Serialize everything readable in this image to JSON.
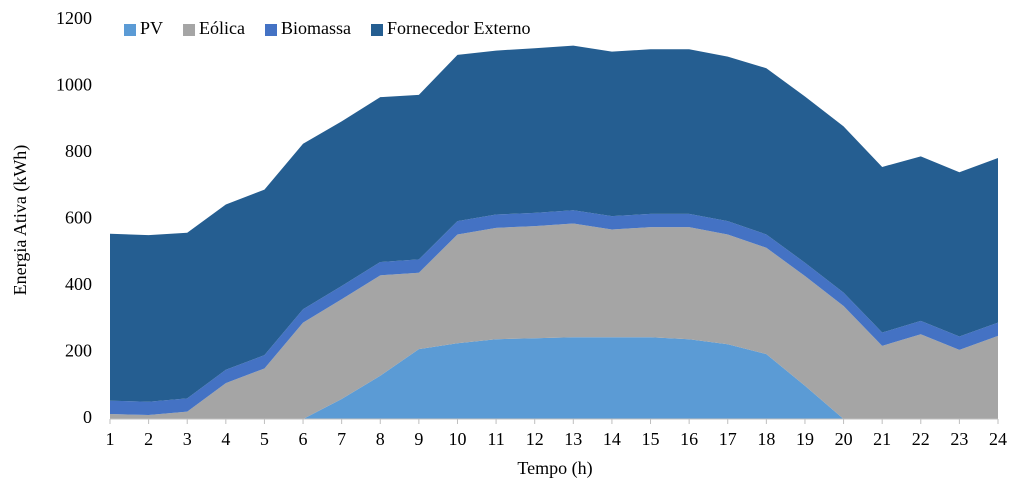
{
  "chart_data": {
    "type": "stacked_area",
    "xlabel": "Tempo (h)",
    "ylabel": "Energia Ativa (kWh)",
    "x": [
      1,
      2,
      3,
      4,
      5,
      6,
      7,
      8,
      9,
      10,
      11,
      12,
      13,
      14,
      15,
      16,
      17,
      18,
      19,
      20,
      21,
      22,
      23,
      24
    ],
    "xlim": [
      1,
      24
    ],
    "xticks": [
      1,
      2,
      3,
      4,
      5,
      6,
      7,
      8,
      9,
      10,
      11,
      12,
      13,
      14,
      15,
      16,
      17,
      18,
      19,
      20,
      21,
      22,
      23,
      24
    ],
    "ylim": [
      0,
      1200
    ],
    "yticks": [
      0,
      200,
      400,
      600,
      800,
      1000,
      1200
    ],
    "legend": "top-left",
    "series": [
      {
        "name": "PV",
        "color": "#5b9bd5",
        "values": [
          0,
          0,
          0,
          0,
          0,
          0,
          60,
          130,
          210,
          228,
          240,
          243,
          246,
          246,
          246,
          240,
          225,
          195,
          100,
          0,
          0,
          0,
          0,
          0
        ]
      },
      {
        "name": "Eólica",
        "color": "#a5a5a5",
        "values": [
          15,
          12,
          22,
          108,
          152,
          290,
          300,
          302,
          230,
          327,
          335,
          337,
          342,
          324,
          331,
          337,
          330,
          320,
          330,
          340,
          220,
          255,
          208,
          250
        ]
      },
      {
        "name": "Biomassa",
        "color": "#4472c4",
        "values": [
          40,
          40,
          40,
          40,
          40,
          40,
          40,
          40,
          40,
          40,
          40,
          40,
          40,
          40,
          40,
          40,
          40,
          40,
          40,
          40,
          40,
          40,
          40,
          40
        ]
      },
      {
        "name": "Fornecedor Externo",
        "color": "#255e91",
        "values": [
          502,
          501,
          498,
          497,
          498,
          498,
          495,
          496,
          495,
          500,
          493,
          495,
          495,
          495,
          495,
          495,
          495,
          500,
          500,
          500,
          498,
          495,
          494,
          495
        ]
      }
    ]
  }
}
